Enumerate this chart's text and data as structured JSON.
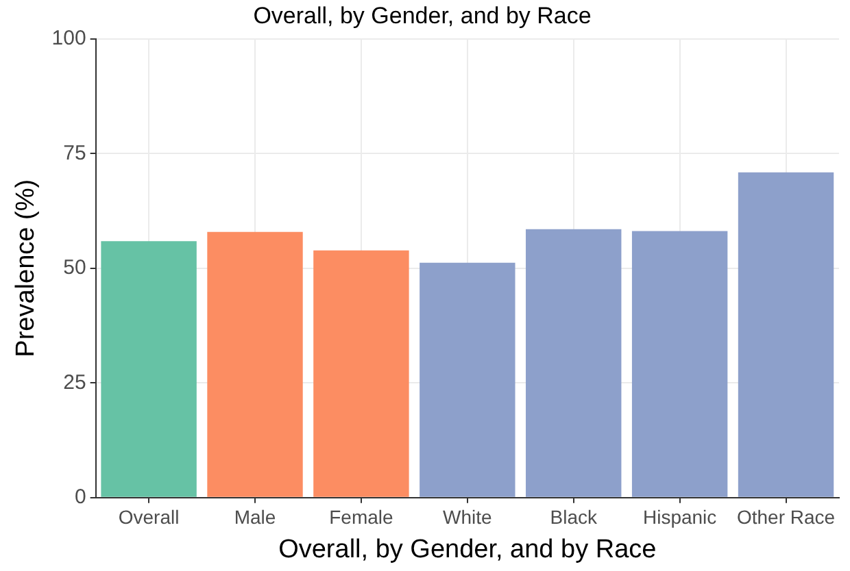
{
  "chart_data": {
    "type": "bar",
    "title": "Overall, by Gender, and by Race",
    "xlabel": "Overall, by Gender, and by Race",
    "ylabel": "Prevalence (%)",
    "categories": [
      "Overall",
      "Male",
      "Female",
      "White",
      "Black",
      "Hispanic",
      "Other Race"
    ],
    "values": [
      55.9,
      57.9,
      53.9,
      51.2,
      58.5,
      58.1,
      70.9
    ],
    "colors": [
      "#66c2a5",
      "#fc8d62",
      "#fc8d62",
      "#8da0cb",
      "#8da0cb",
      "#8da0cb",
      "#8da0cb"
    ],
    "ylim": [
      0,
      100
    ],
    "yticks": [
      0,
      25,
      50,
      75,
      100
    ],
    "grid": true
  }
}
